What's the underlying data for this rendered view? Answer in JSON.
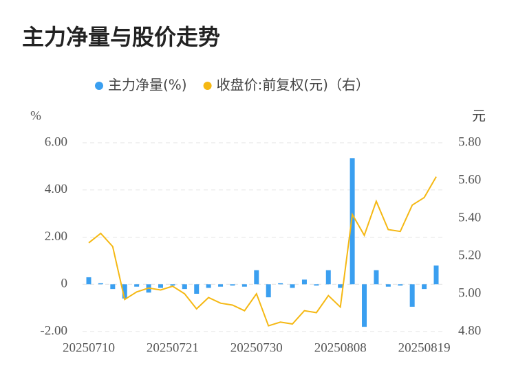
{
  "chart_data": {
    "type": "bar_line",
    "title": "主力净量与股价走势",
    "y_unit": "%",
    "y2_unit": "元",
    "categories": [
      "20250710",
      null,
      null,
      null,
      null,
      null,
      null,
      "20250721",
      null,
      null,
      null,
      null,
      null,
      null,
      "20250730",
      null,
      null,
      null,
      null,
      null,
      null,
      "20250808",
      null,
      null,
      null,
      null,
      null,
      null,
      "20250819",
      null
    ],
    "series": [
      {
        "name": "主力净量(%)",
        "color": "#3a9ff0",
        "type": "bar",
        "values": [
          0.3,
          0.05,
          -0.2,
          -0.6,
          -0.1,
          -0.35,
          -0.15,
          -0.05,
          -0.2,
          -0.4,
          -0.15,
          -0.1,
          -0.05,
          -0.1,
          0.6,
          -0.55,
          0.05,
          -0.15,
          0.2,
          -0.05,
          0.6,
          -0.15,
          5.35,
          -1.8,
          0.6,
          -0.1,
          -0.05,
          -0.95,
          -0.2,
          0.8
        ]
      },
      {
        "name": "收盘价:前复权(元)（右）",
        "color": "#f5b813",
        "type": "line",
        "axis": "y2",
        "values": [
          5.27,
          5.32,
          5.25,
          4.97,
          5.01,
          5.03,
          5.02,
          5.04,
          5.0,
          4.92,
          4.98,
          4.95,
          4.94,
          4.91,
          5.0,
          4.83,
          4.85,
          4.84,
          4.91,
          4.9,
          4.99,
          4.93,
          5.42,
          5.31,
          5.49,
          5.34,
          5.33,
          5.47,
          5.51,
          5.62
        ]
      }
    ],
    "ylim": [
      -2,
      6
    ],
    "yticks": [
      {
        "value": -2,
        "label": "-2.00"
      },
      0,
      {
        "value": 2,
        "label": "2.00"
      },
      {
        "value": 4,
        "label": "4.00"
      },
      {
        "value": 6,
        "label": "6.00"
      }
    ],
    "y2lim": [
      4.8,
      5.8
    ],
    "y2ticks": [
      {
        "value": 4.8,
        "label": "4.80"
      },
      {
        "value": 5.0,
        "label": "5.00"
      },
      {
        "value": 5.2,
        "label": "5.20"
      },
      {
        "value": 5.4,
        "label": "5.40"
      },
      {
        "value": 5.6,
        "label": "5.60"
      },
      {
        "value": 5.8,
        "label": "5.80"
      }
    ],
    "grid": true
  }
}
